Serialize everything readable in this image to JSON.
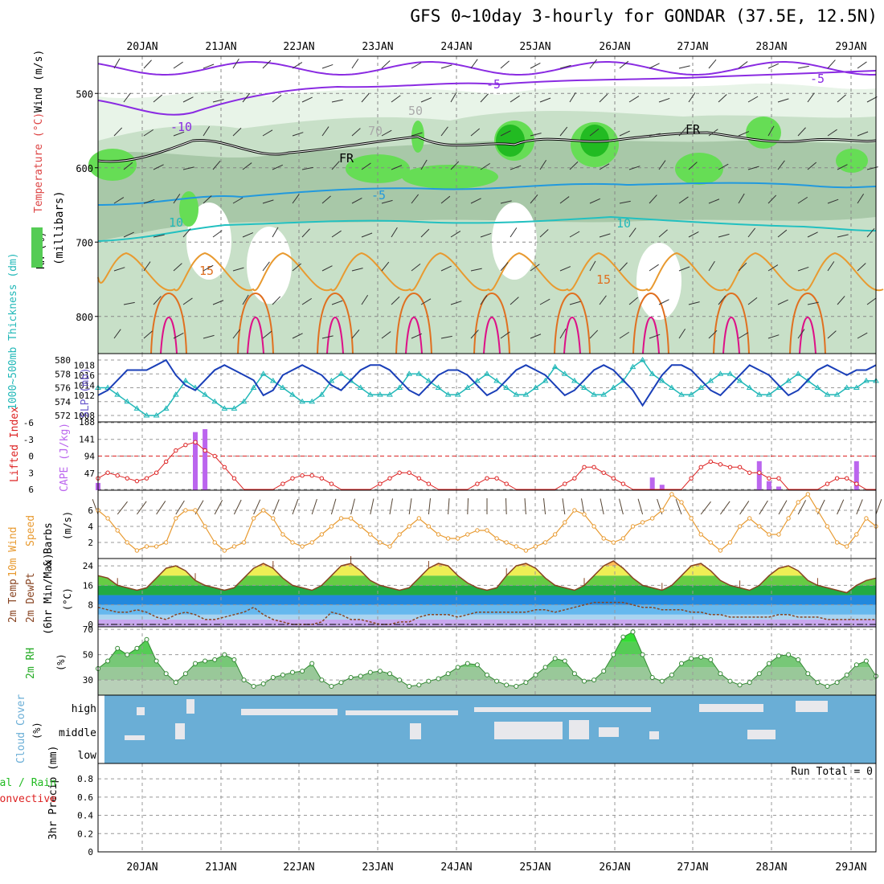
{
  "title": "GFS 0~10day 3-hourly for GONDAR (37.5E, 12.5N)",
  "colors": {
    "rh_green": "#33cc33",
    "temp": "#e07020",
    "wind_purple": "#8a2be2",
    "thick_cyan": "#22b8b8",
    "slp_blue": "#1a3fb8",
    "li_red": "#dd2222",
    "cape_purple": "#bb66ee",
    "wind10_orange": "#e89a30",
    "rh2m_green": "#44cc44",
    "cloud_blue": "#6aaed6"
  },
  "chart_data": [
    {
      "type": "heatmap",
      "panel": "upper-air",
      "dates": [
        "20JAN",
        "21JAN",
        "22JAN",
        "23JAN",
        "24JAN",
        "25JAN",
        "26JAN",
        "27JAN",
        "28JAN",
        "29JAN"
      ],
      "ylabel": "(millibars)",
      "left_labels": [
        "RH (%)",
        "Temperature (°C)",
        "Wind (m/s)"
      ],
      "yticks": [
        500,
        600,
        700,
        800
      ],
      "ylim": [
        850,
        450
      ],
      "contour_labels": [
        "-5",
        "-5",
        "-10",
        "-5",
        "10",
        "10",
        "15",
        "15",
        "FR",
        "FR",
        "50",
        "70"
      ]
    },
    {
      "type": "line",
      "panel": "thickness-slp",
      "ylabel_left": "1000~500mb Thickness (dm)",
      "ylabel_right": "SLP (mb)",
      "yticks_left": [
        572,
        574,
        576,
        578,
        580
      ],
      "yticks_right": [
        1008,
        1012,
        1014,
        1016,
        1018
      ],
      "series": [
        {
          "values": [
            576,
            576,
            575,
            574,
            573,
            572,
            572,
            573,
            575,
            577,
            576,
            575,
            574,
            573,
            573,
            574,
            576,
            578,
            577,
            576,
            575,
            574,
            574,
            575,
            577,
            578,
            577,
            576,
            575,
            575,
            575,
            576,
            578,
            578,
            577,
            576,
            575,
            575,
            576,
            577,
            578,
            577,
            576,
            575,
            575,
            576,
            577,
            579,
            578,
            577,
            576,
            575,
            575,
            576,
            577,
            579,
            580,
            578,
            577,
            576,
            575,
            575,
            576,
            577,
            578,
            578,
            577,
            576,
            575,
            575,
            576,
            577,
            578,
            577,
            576,
            575,
            575,
            576,
            576,
            577,
            577
          ]
        },
        {
          "values": [
            1012,
            1013,
            1015,
            1017,
            1017,
            1017,
            1018,
            1019,
            1016,
            1014,
            1013,
            1015,
            1017,
            1018,
            1017,
            1016,
            1015,
            1012,
            1013,
            1016,
            1017,
            1018,
            1017,
            1016,
            1014,
            1013,
            1015,
            1017,
            1018,
            1018,
            1017,
            1015,
            1013,
            1012,
            1014,
            1016,
            1017,
            1017,
            1016,
            1014,
            1012,
            1013,
            1015,
            1017,
            1018,
            1017,
            1016,
            1014,
            1012,
            1013,
            1015,
            1017,
            1018,
            1017,
            1015,
            1013,
            1010,
            1013,
            1016,
            1018,
            1018,
            1017,
            1015,
            1013,
            1012,
            1014,
            1016,
            1018,
            1017,
            1016,
            1014,
            1012,
            1013,
            1015,
            1017,
            1018,
            1017,
            1016,
            1017,
            1017,
            1018
          ]
        }
      ]
    },
    {
      "type": "bar",
      "panel": "lifted-index-cape",
      "ylabel_left": "Lifted Index",
      "ylabel_right": "CAPE (J/kg)",
      "yticks_left": [
        "6",
        "3",
        "0",
        "-3",
        "-6"
      ],
      "yticks_right": [
        "188",
        "141",
        "94",
        "47"
      ],
      "series": [
        {
          "values": [
            4,
            3,
            3.5,
            4,
            4.5,
            4,
            3,
            1,
            -1,
            -2,
            -2.5,
            -1,
            0,
            2,
            4,
            6,
            6,
            6,
            6,
            5,
            4,
            3.5,
            3.5,
            4,
            5,
            6,
            6,
            6,
            6,
            5,
            4,
            3,
            3,
            4,
            5,
            6,
            6,
            6,
            6,
            5,
            4,
            4,
            5,
            6,
            6,
            6,
            6,
            6,
            5,
            4,
            2,
            2,
            3,
            4,
            5,
            6,
            6,
            6,
            6,
            6,
            6,
            4,
            2,
            1,
            1.5,
            2,
            2,
            3,
            3,
            4,
            4,
            6,
            6,
            6,
            6,
            5,
            4,
            4,
            5,
            6,
            6
          ]
        },
        {
          "values": [
            20,
            0,
            0,
            0,
            0,
            0,
            0,
            0,
            0,
            0,
            160,
            168,
            0,
            0,
            0,
            0,
            0,
            0,
            0,
            0,
            0,
            0,
            0,
            0,
            0,
            0,
            0,
            0,
            0,
            0,
            0,
            0,
            0,
            0,
            0,
            0,
            0,
            0,
            0,
            0,
            0,
            0,
            0,
            0,
            0,
            0,
            0,
            0,
            0,
            0,
            0,
            0,
            0,
            0,
            0,
            0,
            0,
            35,
            15,
            0,
            0,
            0,
            0,
            0,
            0,
            0,
            0,
            0,
            80,
            25,
            10,
            0,
            0,
            0,
            0,
            0,
            0,
            0,
            80,
            0,
            0
          ]
        }
      ]
    },
    {
      "type": "line",
      "panel": "wind10m",
      "ylabel": "10m Wind Speed & Barbs (m/s)",
      "yticks": [
        2,
        4,
        6
      ],
      "series": [
        {
          "values": [
            6,
            5,
            3.5,
            2,
            1,
            1.5,
            1.5,
            2,
            5,
            6,
            6,
            4,
            2,
            1,
            1.5,
            2,
            5,
            6,
            5,
            3,
            2,
            1.5,
            2,
            3,
            4,
            5,
            5,
            4,
            3,
            2,
            1.5,
            3,
            4,
            5,
            4,
            3,
            2.5,
            2.5,
            3,
            3.5,
            3.5,
            2.5,
            2,
            1.5,
            1,
            1.5,
            2,
            3,
            4.5,
            6,
            5.5,
            4,
            2.5,
            2,
            2.5,
            4,
            4.5,
            5,
            6,
            8,
            7,
            5,
            3,
            2,
            1,
            2,
            4,
            5,
            4,
            3,
            3,
            5,
            7,
            8,
            6,
            4,
            2,
            1.5,
            3,
            5,
            4
          ]
        }
      ]
    },
    {
      "type": "area",
      "panel": "temp2m",
      "ylabel": "2m Temp 2m DewPt (6hr Min/Max) (°C)",
      "yticks": [
        0,
        8,
        16,
        24
      ],
      "series": [
        {
          "values": [
            20,
            19,
            16,
            15,
            14,
            15,
            19,
            23,
            24,
            22,
            18,
            16,
            15,
            14,
            15,
            19,
            23,
            25,
            23,
            19,
            16,
            15,
            14,
            16,
            20,
            24,
            25,
            22,
            18,
            16,
            15,
            14,
            15,
            19,
            23,
            25,
            24,
            20,
            17,
            15,
            14,
            15,
            20,
            24,
            25,
            23,
            19,
            16,
            15,
            14,
            16,
            20,
            24,
            26,
            23,
            19,
            16,
            15,
            14,
            16,
            20,
            24,
            25,
            22,
            18,
            16,
            15,
            14,
            16,
            20,
            23,
            24,
            22,
            18,
            16,
            15,
            14,
            13,
            16,
            18,
            19
          ]
        },
        {
          "values": [
            7,
            6,
            5,
            5,
            6,
            5,
            3,
            2,
            4,
            5,
            4,
            2,
            2,
            3,
            4,
            5,
            7,
            4,
            2,
            1,
            0,
            0,
            0,
            1,
            5,
            4,
            2,
            2,
            1,
            0,
            0,
            1,
            1,
            3,
            4,
            4,
            4,
            3,
            4,
            5,
            5,
            5,
            5,
            5,
            5,
            6,
            6,
            5,
            6,
            7,
            8,
            9,
            9,
            9,
            9,
            8,
            7,
            7,
            6,
            6,
            6,
            5,
            5,
            4,
            4,
            3,
            3,
            3,
            3,
            3,
            4,
            4,
            3,
            3,
            3,
            2,
            2,
            2,
            2,
            2,
            2
          ]
        }
      ]
    },
    {
      "type": "area",
      "panel": "rh2m",
      "ylabel": "2m RH (%)",
      "yticks": [
        30,
        50,
        70
      ],
      "series": [
        {
          "values": [
            39,
            45,
            55,
            50,
            55,
            62,
            45,
            35,
            28,
            35,
            43,
            45,
            46,
            50,
            46,
            30,
            25,
            27,
            32,
            34,
            36,
            37,
            43,
            30,
            25,
            28,
            32,
            33,
            36,
            37,
            35,
            30,
            25,
            26,
            29,
            31,
            35,
            40,
            43,
            42,
            34,
            29,
            26,
            25,
            28,
            34,
            40,
            47,
            45,
            35,
            29,
            30,
            37,
            50,
            64,
            68,
            50,
            32,
            29,
            34,
            43,
            47,
            48,
            46,
            35,
            29,
            26,
            28,
            35,
            43,
            49,
            50,
            46,
            35,
            28,
            25,
            28,
            34,
            42,
            45,
            33
          ]
        }
      ]
    },
    {
      "type": "heatmap",
      "panel": "cloud-cover",
      "ylabel": "Cloud Cover (%)",
      "yticks": [
        "high",
        "middle",
        "low"
      ]
    },
    {
      "type": "bar",
      "panel": "precip",
      "ylabel": "3hr Precip (mm)",
      "left_labels": [
        "Total / Rain",
        "Convective"
      ],
      "yticks": [
        "0",
        "0.2",
        "0.4",
        "0.6",
        "0.8"
      ],
      "annotation": "Run Total = 0",
      "series": [
        {
          "values": [
            0,
            0,
            0,
            0,
            0,
            0,
            0,
            0,
            0,
            0
          ]
        }
      ]
    }
  ]
}
